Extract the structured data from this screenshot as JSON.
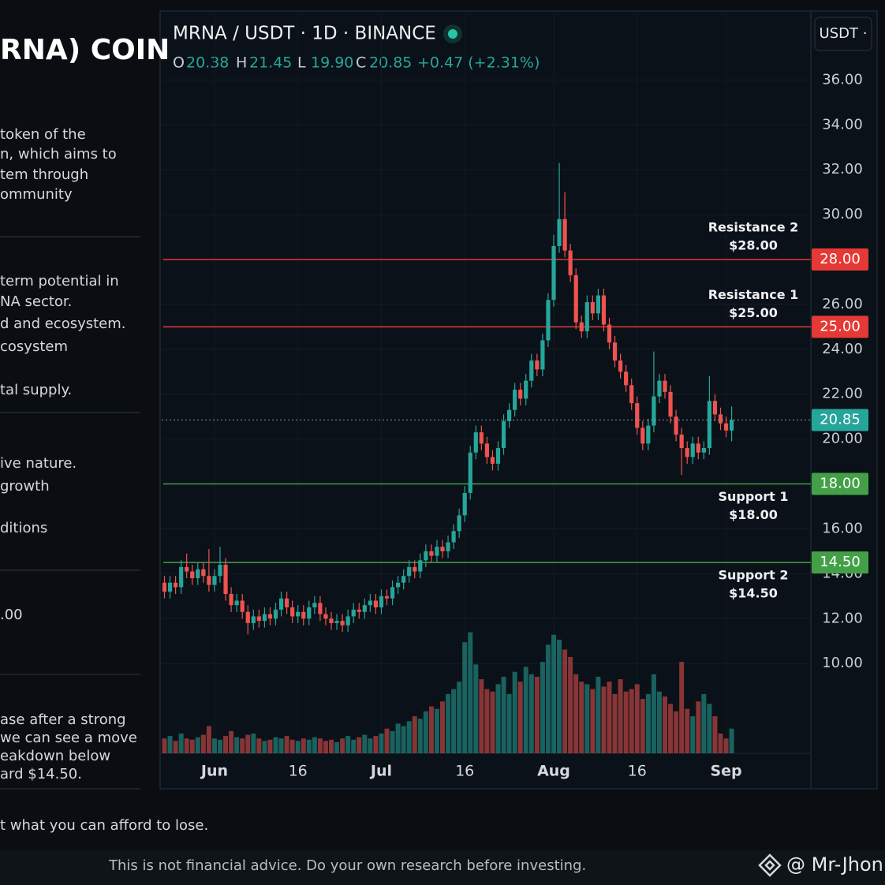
{
  "sidebar": {
    "title": "RNA) COIN",
    "sections": [
      [
        "token of the",
        "n, which aims to",
        "tem through",
        "ommunity"
      ],
      [
        "term potential in",
        "NA sector.",
        "d and ecosystem.",
        "cosystem",
        "tal supply."
      ],
      [
        "ive nature.",
        "growth",
        "ditions"
      ],
      [
        ".00"
      ],
      [
        "ase after a strong",
        "we can see a move",
        "eakdown below",
        "ard $14.50."
      ]
    ],
    "note": "t what you can afford to lose."
  },
  "footer": {
    "disclaimer": "This is not financial advice. Do your own research before investing.",
    "handle": "@ Mr-Jhon"
  },
  "chart_data": {
    "type": "candlestick",
    "title": "MRNA / USDT · 1D · BINANCE",
    "quote_button": "USDT ·",
    "ohlc_legend": [
      {
        "key": "O",
        "value": "20.38"
      },
      {
        "key": "H",
        "value": "21.45"
      },
      {
        "key": "L",
        "value": "19.90"
      },
      {
        "key": "C",
        "value": "20.85"
      }
    ],
    "change": "+0.47 (+2.31%)",
    "categories": [
      null,
      null,
      null,
      null,
      null,
      null,
      null,
      null,
      null,
      "Jun",
      null,
      null,
      null,
      null,
      null,
      null,
      null,
      null,
      null,
      null,
      null,
      null,
      null,
      null,
      "16",
      null,
      null,
      null,
      null,
      null,
      null,
      null,
      null,
      null,
      null,
      null,
      null,
      null,
      null,
      "Jul",
      null,
      null,
      null,
      null,
      null,
      null,
      null,
      null,
      null,
      null,
      null,
      null,
      null,
      null,
      "16",
      null,
      null,
      null,
      null,
      null,
      null,
      null,
      null,
      null,
      null,
      null,
      null,
      null,
      null,
      null,
      "Aug",
      null,
      null,
      null,
      null,
      null,
      null,
      null,
      null,
      null,
      null,
      null,
      null,
      null,
      null,
      "16",
      null,
      null,
      null,
      null,
      null,
      null,
      null,
      null,
      null,
      null,
      null,
      null,
      null,
      null,
      null,
      "Sep",
      null
    ],
    "open": [
      13.6,
      13.2,
      13.6,
      13.4,
      14.3,
      14.1,
      13.8,
      14.2,
      13.9,
      13.5,
      13.9,
      14.4,
      13.1,
      12.6,
      12.8,
      12.3,
      11.8,
      12.1,
      11.9,
      12.2,
      12.0,
      12.4,
      12.9,
      12.5,
      12.1,
      12.3,
      12.0,
      12.5,
      12.7,
      12.2,
      12.0,
      11.8,
      11.9,
      11.7,
      12.1,
      12.4,
      12.3,
      12.6,
      12.8,
      12.5,
      13.0,
      12.9,
      13.4,
      13.6,
      13.9,
      14.3,
      14.1,
      14.6,
      15.0,
      14.8,
      15.2,
      15.0,
      15.4,
      15.9,
      16.6,
      17.6,
      19.4,
      20.3,
      19.8,
      19.2,
      18.9,
      19.6,
      20.8,
      21.3,
      22.2,
      21.8,
      22.6,
      23.5,
      23.1,
      24.4,
      26.2,
      28.6,
      29.8,
      28.4,
      27.3,
      25.2,
      24.8,
      26.1,
      25.6,
      26.4,
      25.1,
      24.3,
      23.5,
      23.0,
      22.4,
      21.6,
      20.5,
      19.8,
      20.6,
      21.9,
      22.6,
      22.1,
      21.0,
      20.2,
      19.6,
      19.2,
      19.8,
      19.4,
      19.6,
      21.7,
      21.1,
      20.7,
      20.38
    ],
    "high": [
      13.9,
      13.9,
      13.9,
      14.6,
      14.9,
      14.4,
      14.5,
      14.5,
      15.1,
      14.2,
      15.2,
      14.7,
      13.4,
      13.1,
      13.1,
      12.6,
      12.4,
      12.4,
      12.5,
      12.5,
      12.7,
      13.2,
      13.2,
      12.8,
      12.6,
      12.6,
      12.8,
      13.0,
      13.0,
      12.5,
      12.3,
      12.2,
      12.2,
      12.4,
      12.7,
      12.7,
      12.9,
      13.1,
      13.1,
      13.3,
      13.3,
      13.7,
      13.9,
      14.2,
      14.6,
      14.6,
      14.9,
      15.3,
      15.3,
      15.5,
      15.5,
      15.7,
      16.2,
      16.9,
      17.9,
      19.7,
      20.6,
      20.6,
      20.1,
      19.5,
      19.9,
      21.1,
      21.6,
      22.5,
      22.5,
      22.9,
      23.8,
      23.8,
      24.7,
      26.5,
      29.1,
      32.3,
      31.0,
      28.7,
      27.6,
      25.5,
      26.4,
      26.4,
      26.7,
      26.7,
      25.4,
      24.6,
      23.8,
      23.3,
      22.7,
      21.9,
      20.8,
      20.9,
      23.9,
      22.9,
      22.9,
      22.4,
      21.3,
      20.5,
      19.9,
      20.1,
      20.1,
      19.9,
      22.8,
      22.0,
      21.4,
      21.0,
      21.45
    ],
    "low": [
      12.9,
      12.9,
      13.1,
      13.1,
      13.8,
      13.5,
      13.5,
      13.6,
      13.2,
      13.2,
      13.6,
      12.8,
      12.3,
      12.3,
      12.0,
      11.3,
      11.5,
      11.6,
      11.6,
      11.7,
      11.7,
      12.1,
      12.2,
      11.8,
      11.8,
      11.7,
      11.7,
      12.2,
      11.9,
      11.7,
      11.5,
      11.5,
      11.4,
      11.4,
      11.8,
      12.0,
      12.0,
      12.3,
      12.2,
      12.2,
      12.6,
      12.6,
      13.1,
      13.3,
      13.6,
      13.8,
      13.8,
      14.3,
      14.5,
      14.5,
      14.7,
      14.7,
      15.1,
      15.6,
      16.3,
      17.3,
      19.1,
      19.5,
      18.9,
      18.6,
      18.6,
      19.3,
      20.5,
      21.0,
      21.5,
      21.5,
      22.3,
      22.8,
      22.8,
      24.1,
      25.9,
      28.3,
      28.1,
      27.0,
      24.9,
      24.5,
      24.5,
      25.3,
      25.3,
      24.8,
      24.0,
      23.2,
      22.7,
      22.1,
      21.3,
      20.2,
      19.5,
      19.5,
      20.3,
      21.6,
      21.8,
      20.7,
      19.9,
      18.4,
      18.9,
      18.9,
      19.1,
      19.1,
      19.3,
      20.8,
      20.4,
      20.08,
      19.9
    ],
    "close": [
      13.2,
      13.6,
      13.4,
      14.3,
      14.1,
      13.8,
      14.2,
      13.9,
      13.5,
      13.9,
      14.4,
      13.1,
      12.6,
      12.8,
      12.3,
      11.8,
      12.1,
      11.9,
      12.2,
      12.0,
      12.4,
      12.9,
      12.5,
      12.1,
      12.3,
      12.0,
      12.5,
      12.7,
      12.2,
      12.0,
      11.8,
      11.9,
      11.7,
      12.1,
      12.4,
      12.3,
      12.6,
      12.8,
      12.5,
      13.0,
      12.9,
      13.4,
      13.6,
      13.9,
      14.3,
      14.1,
      14.6,
      15.0,
      14.8,
      15.2,
      15.0,
      15.4,
      15.9,
      16.6,
      17.6,
      19.4,
      20.3,
      19.8,
      19.2,
      18.9,
      19.6,
      20.8,
      21.3,
      22.2,
      21.8,
      22.6,
      23.5,
      23.1,
      24.4,
      26.2,
      28.6,
      29.8,
      28.4,
      27.3,
      25.2,
      24.8,
      26.1,
      25.6,
      26.4,
      25.1,
      24.3,
      23.5,
      23.0,
      22.4,
      21.6,
      20.5,
      19.8,
      20.6,
      21.9,
      22.6,
      22.1,
      21.0,
      20.2,
      19.6,
      19.2,
      19.8,
      19.4,
      19.6,
      21.7,
      21.1,
      20.7,
      20.38,
      20.85
    ],
    "volume": [
      12,
      14,
      10,
      16,
      12,
      11,
      13,
      15,
      22,
      12,
      11,
      14,
      18,
      13,
      12,
      15,
      16,
      12,
      10,
      11,
      13,
      12,
      14,
      11,
      10,
      12,
      11,
      13,
      12,
      10,
      11,
      9,
      12,
      14,
      11,
      13,
      15,
      12,
      14,
      16,
      20,
      18,
      24,
      22,
      26,
      30,
      28,
      34,
      38,
      36,
      42,
      48,
      52,
      58,
      90,
      98,
      72,
      60,
      52,
      50,
      56,
      62,
      48,
      66,
      58,
      70,
      64,
      62,
      74,
      88,
      96,
      92,
      84,
      78,
      64,
      58,
      56,
      52,
      62,
      54,
      58,
      48,
      60,
      50,
      52,
      56,
      44,
      48,
      64,
      50,
      46,
      40,
      34,
      74,
      36,
      30,
      42,
      48,
      40,
      30,
      16,
      12,
      20
    ],
    "up_color": "#26a69a",
    "down_color": "#ef5350",
    "ylim": [
      6,
      39
    ],
    "yticks": [
      {
        "value": 10,
        "label": "10.00"
      },
      {
        "value": 12,
        "label": "12.00"
      },
      {
        "value": 14,
        "label": "14.00"
      },
      {
        "value": 16,
        "label": "16.00"
      },
      {
        "value": 18,
        "label": "18.00"
      },
      {
        "value": 20,
        "label": "20.00"
      },
      {
        "value": 22,
        "label": "22.00"
      },
      {
        "value": 24,
        "label": "24.00"
      },
      {
        "value": 26,
        "label": "26.00"
      },
      {
        "value": 28,
        "label": "28.00"
      },
      {
        "value": 30,
        "label": "30.00"
      },
      {
        "value": 32,
        "label": "32.00"
      },
      {
        "value": 34,
        "label": "34.00"
      },
      {
        "value": 36,
        "label": "36.00"
      }
    ],
    "y2lim": [
      0,
      600
    ],
    "grid": true,
    "levels": [
      {
        "name": "Resistance 2",
        "value": 28,
        "label": "$28.00",
        "badge": "28.00",
        "color": "#e53935"
      },
      {
        "name": "Resistance 1",
        "value": 25,
        "label": "$25.00",
        "badge": "25.00",
        "color": "#e53935"
      },
      {
        "name": "Support 1",
        "value": 18,
        "label": "$18.00",
        "badge": "18.00",
        "color": "#43a047"
      },
      {
        "name": "Support 2",
        "value": 14.5,
        "label": "$14.50",
        "badge": "14.50",
        "color": "#43a047"
      }
    ]
  }
}
